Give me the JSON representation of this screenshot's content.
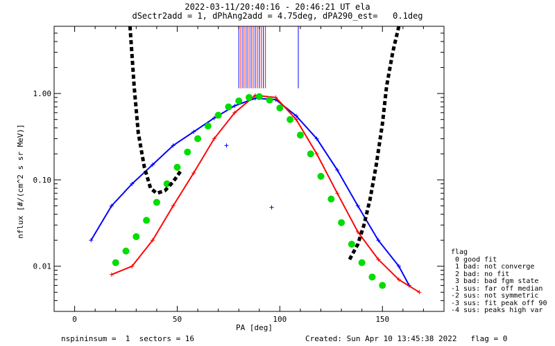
{
  "chart_data": {
    "type": "scatter",
    "title": "2022-03-11/20:40:16 - 20:46:21 UT ela",
    "subtitle": "dSectr2add = 1, dPhAng2add = 4.75deg, dPA290_est=   0.1deg",
    "xlabel": "PA [deg]",
    "ylabel": "nflux [#/(cm^2 s sr MeV)]",
    "xlim": [
      -10,
      180
    ],
    "ylim": [
      0.003,
      6
    ],
    "yscale": "log",
    "x_ticks": [
      0,
      50,
      100,
      150
    ],
    "x_tick_labels": [
      "0",
      "50",
      "100",
      "150"
    ],
    "y_ticks": [
      0.01,
      0.1,
      1.0
    ],
    "y_tick_labels": [
      "0.01",
      "0.10",
      "1.00"
    ],
    "grid": false,
    "series": [
      {
        "color": "#0000ff",
        "x": [
          8,
          18,
          28,
          38,
          48,
          58,
          68,
          78,
          88,
          98,
          108,
          118,
          128,
          138,
          148,
          158,
          163
        ],
        "y": [
          0.02,
          0.05,
          0.09,
          0.15,
          0.25,
          0.36,
          0.52,
          0.72,
          0.88,
          0.85,
          0.55,
          0.3,
          0.13,
          0.05,
          0.02,
          0.01,
          0.006
        ]
      },
      {
        "color": "#ff0000",
        "x": [
          18,
          28,
          38,
          48,
          58,
          68,
          78,
          88,
          98,
          108,
          118,
          128,
          138,
          148,
          158,
          168
        ],
        "y": [
          0.008,
          0.01,
          0.02,
          0.05,
          0.12,
          0.3,
          0.6,
          0.95,
          0.9,
          0.5,
          0.2,
          0.07,
          0.025,
          0.012,
          0.007,
          0.005
        ]
      },
      {
        "color": "#00dd00",
        "x": [
          20,
          25,
          30,
          35,
          40,
          45,
          50,
          55,
          60,
          65,
          70,
          75,
          80,
          85,
          90,
          95,
          100,
          105,
          110,
          115,
          120,
          125,
          130,
          135,
          140,
          145,
          150
        ],
        "y": [
          0.011,
          0.015,
          0.022,
          0.034,
          0.055,
          0.09,
          0.14,
          0.21,
          0.3,
          0.42,
          0.56,
          0.7,
          0.82,
          0.9,
          0.92,
          0.84,
          0.68,
          0.5,
          0.33,
          0.2,
          0.11,
          0.06,
          0.032,
          0.018,
          0.011,
          0.0075,
          0.006
        ]
      },
      {
        "color": "#000000",
        "x": [
          27,
          29,
          31,
          34,
          37,
          40,
          44,
          48,
          52
        ],
        "y": [
          6,
          1.2,
          0.35,
          0.14,
          0.08,
          0.07,
          0.075,
          0.095,
          0.13
        ]
      },
      {
        "color": "#000000",
        "x": [
          134,
          138,
          141,
          144,
          147,
          150,
          152,
          155,
          158
        ],
        "y": [
          0.012,
          0.018,
          0.03,
          0.06,
          0.15,
          0.45,
          1.2,
          3.0,
          6
        ]
      }
    ],
    "outliers": [
      {
        "color": "#0000ff",
        "x": 74,
        "y": 0.25
      },
      {
        "color": "#0000ff",
        "x": 96,
        "y": 0.048
      }
    ],
    "vertical_lines_x": [
      80,
      81,
      82,
      83,
      84,
      85,
      86,
      87,
      88,
      89,
      90,
      91,
      92,
      93,
      109
    ],
    "legend": {
      "title": "flag",
      "entries": [
        " 0 good fit",
        " 1 bad: not converge",
        " 2 bad: no fit",
        " 3 bad: bad fgm state",
        "-1 sus: far off median",
        "-2 sus: not symmetric",
        "-3 sus: fit peak off 90",
        "-4 sus: peaks high var"
      ],
      "placement": "right"
    }
  },
  "footer": {
    "left": "nspininsum =  1  sectors = 16",
    "right": "Created: Sun Apr 10 13:45:38 2022   flag = 0"
  }
}
